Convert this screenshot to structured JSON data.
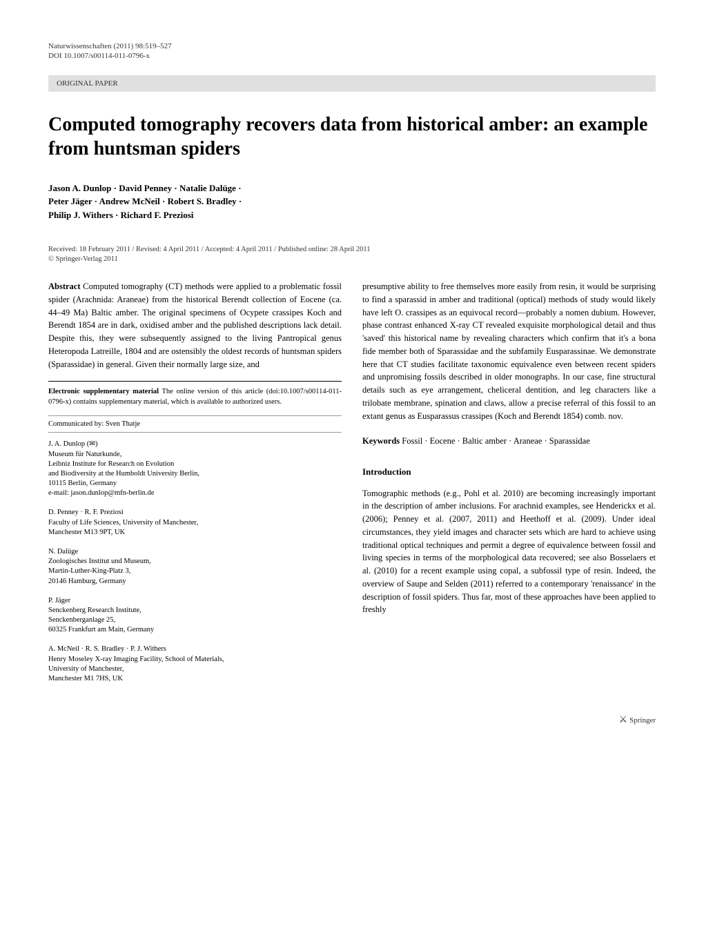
{
  "header": {
    "journal_line": "Naturwissenschaften (2011) 98:519–527",
    "doi_line": "DOI 10.1007/s00114-011-0796-x"
  },
  "section_label": "ORIGINAL PAPER",
  "title": "Computed tomography recovers data from historical amber: an example from huntsman spiders",
  "authors_line1": "Jason A. Dunlop · David Penney · Natalie Dalüge ·",
  "authors_line2": "Peter Jäger · Andrew McNeil · Robert S. Bradley ·",
  "authors_line3": "Philip J. Withers · Richard F. Preziosi",
  "dates": "Received: 18 February 2011 / Revised: 4 April 2011 / Accepted: 4 April 2011 / Published online: 28 April 2011",
  "copyright": "© Springer-Verlag 2011",
  "abstract": {
    "label": "Abstract",
    "text": " Computed tomography (CT) methods were applied to a problematic fossil spider (Arachnida: Araneae) from the historical Berendt collection of Eocene (ca. 44–49 Ma) Baltic amber. The original specimens of Ocypete crassipes Koch and Berendt 1854 are in dark, oxidised amber and the published descriptions lack detail. Despite this, they were subsequently assigned to the living Pantropical genus Heteropoda Latreille, 1804 and are ostensibly the oldest records of huntsman spiders (Sparassidae) in general. Given their normally large size, and"
  },
  "supplementary": {
    "label": "Electronic supplementary material",
    "text": " The online version of this article (doi:10.1007/s00114-011-0796-x) contains supplementary material, which is available to authorized users."
  },
  "communicated": "Communicated by: Sven Thatje",
  "affiliations": [
    {
      "names": "J. A. Dunlop (✉)",
      "lines": [
        "Museum für Naturkunde,",
        "Leibniz Institute for Research on Evolution",
        "and Biodiversity at the Humboldt University Berlin,",
        "10115 Berlin, Germany",
        "e-mail: jason.dunlop@mfn-berlin.de"
      ]
    },
    {
      "names": "D. Penney · R. F. Preziosi",
      "lines": [
        "Faculty of Life Sciences, University of Manchester,",
        "Manchester M13 9PT, UK"
      ]
    },
    {
      "names": "N. Dalüge",
      "lines": [
        "Zoologisches Institut und Museum,",
        "Martin-Luther-King-Platz 3,",
        "20146 Hamburg, Germany"
      ]
    },
    {
      "names": "P. Jäger",
      "lines": [
        "Senckenberg Research Institute,",
        "Senckenberganlage 25,",
        "60325 Frankfurt am Main, Germany"
      ]
    },
    {
      "names": "A. McNeil · R. S. Bradley · P. J. Withers",
      "lines": [
        "Henry Moseley X-ray Imaging Facility, School of Materials,",
        "University of Manchester,",
        "Manchester M1 7HS, UK"
      ]
    }
  ],
  "right_col": {
    "abstract_cont": "presumptive ability to free themselves more easily from resin, it would be surprising to find a sparassid in amber and traditional (optical) methods of study would likely have left O. crassipes as an equivocal record—probably a nomen dubium. However, phase contrast enhanced X-ray CT revealed exquisite morphological detail and thus 'saved' this historical name by revealing characters which confirm that it's a bona fide member both of Sparassidae and the subfamily Eusparassinae. We demonstrate here that CT studies facilitate taxonomic equivalence even between recent spiders and unpromising fossils described in older monographs. In our case, fine structural details such as eye arrangement, cheliceral dentition, and leg characters like a trilobate membrane, spination and claws, allow a precise referral of this fossil to an extant genus as Eusparassus crassipes (Koch and Berendt 1854) comb. nov.",
    "keywords_label": "Keywords",
    "keywords_text": " Fossil · Eocene · Baltic amber · Araneae · Sparassidae",
    "intro_heading": "Introduction",
    "intro_text": "Tomographic methods (e.g., Pohl et al. 2010) are becoming increasingly important in the description of amber inclusions. For arachnid examples, see Henderickx et al. (2006); Penney et al. (2007, 2011) and Heethoff et al. (2009). Under ideal circumstances, they yield images and character sets which are hard to achieve using traditional optical techniques and permit a degree of equivalence between fossil and living species in terms of the morphological data recovered; see also Bosselaers et al. (2010) for a recent example using copal, a subfossil type of resin. Indeed, the overview of Saupe and Selden (2011) referred to a contemporary 'renaissance' in the description of fossil spiders. Thus far, most of these approaches have been applied to freshly"
  },
  "footer": {
    "publisher": "Springer"
  }
}
